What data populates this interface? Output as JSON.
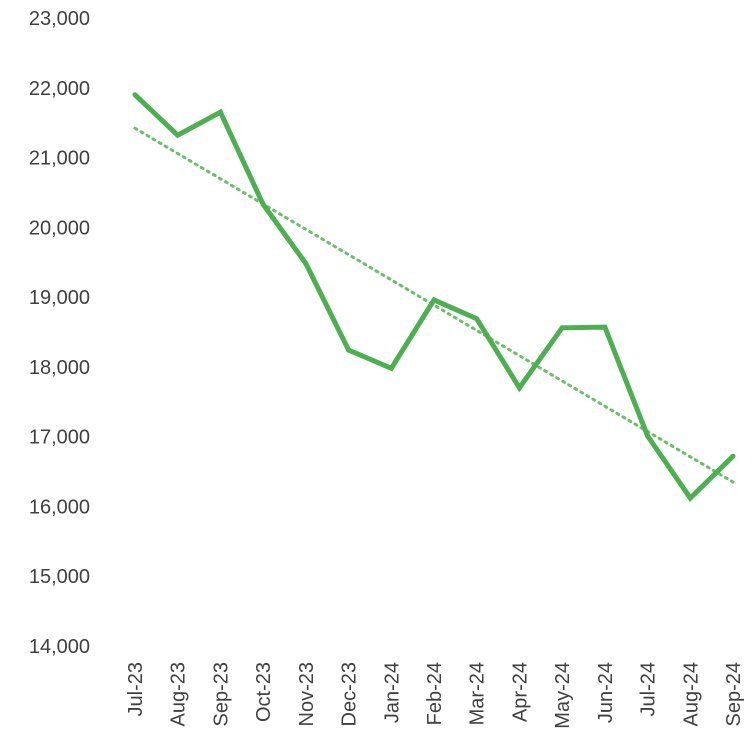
{
  "chart_data": {
    "type": "line",
    "categories": [
      "Jul-23",
      "Aug-23",
      "Sep-23",
      "Oct-23",
      "Nov-23",
      "Dec-23",
      "Jan-24",
      "Feb-24",
      "Mar-24",
      "Apr-24",
      "May-24",
      "Jun-24",
      "Jul-24",
      "Aug-24",
      "Sep-24"
    ],
    "series": [
      {
        "values": [
          21900,
          21320,
          21650,
          20330,
          19480,
          18240,
          17980,
          18960,
          18690,
          17700,
          18560,
          18570,
          17010,
          16120,
          16720
        ],
        "color": "#4caf50",
        "style": "solid"
      }
    ],
    "trendline": {
      "type": "linear",
      "start": 21420,
      "end": 16350,
      "color": "#6abf69",
      "style": "dotted"
    },
    "title": "",
    "xlabel": "",
    "ylabel": "",
    "ylim": [
      14000,
      23000
    ],
    "y_ticks": [
      "14,000",
      "15,000",
      "16,000",
      "17,000",
      "18,000",
      "19,000",
      "20,000",
      "21,000",
      "22,000",
      "23,000"
    ],
    "grid": false,
    "legend": "none"
  }
}
